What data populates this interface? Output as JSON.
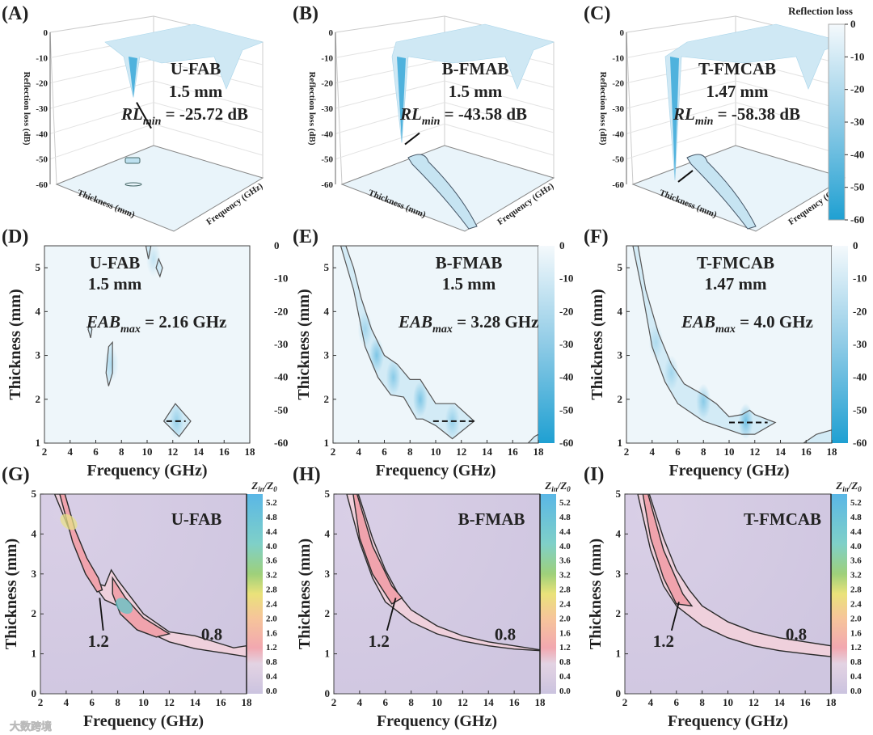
{
  "colorbar_title": "Reflection loss",
  "colorbar_ticks": [
    "0",
    "-10",
    "-20",
    "-30",
    "-40",
    "-50",
    "-60"
  ],
  "watermark": "大数跨境",
  "chart_data": [
    {
      "panel": "(A)",
      "type": "surface3d",
      "sample": "U-FAB",
      "thickness": "1.5 mm",
      "ann_main": "RL",
      "ann_sub": "min",
      "ann_value": " = -25.72 dB",
      "rl_min": -25.72,
      "zlabel": "Reflection loss (dB)",
      "xlabel": "Thickness (mm)",
      "ylabel": "Frequency (GHz)",
      "zticks": [
        "0",
        "-10",
        "-20",
        "-30",
        "-40",
        "-50",
        "-60"
      ],
      "zlim": [
        -60,
        0
      ]
    },
    {
      "panel": "(B)",
      "type": "surface3d",
      "sample": "B-FMAB",
      "thickness": "1.5 mm",
      "ann_main": "RL",
      "ann_sub": "min",
      "ann_value": " = -43.58 dB",
      "rl_min": -43.58,
      "zlabel": "Reflection loss (dB)",
      "xlabel": "Thickness (mm)",
      "ylabel": "Frequency (GHz)",
      "zticks": [
        "0",
        "-10",
        "-20",
        "-30",
        "-40",
        "-50",
        "-60"
      ],
      "zlim": [
        -60,
        0
      ]
    },
    {
      "panel": "(C)",
      "type": "surface3d",
      "sample": "T-FMCAB",
      "thickness": "1.47 mm",
      "ann_main": "RL",
      "ann_sub": "min",
      "ann_value": " = -58.38 dB",
      "rl_min": -58.38,
      "zlabel": "Reflection loss (dB)",
      "xlabel": "Thickness (mm)",
      "ylabel": "Frequency (GHz)",
      "zticks": [
        "0",
        "-10",
        "-20",
        "-30",
        "-40",
        "-50",
        "-60"
      ],
      "zlim": [
        -60,
        0
      ]
    },
    {
      "panel": "(D)",
      "type": "heatmap",
      "sample": "U-FAB",
      "thickness": "1.5 mm",
      "ann_main": "EAB",
      "ann_sub": "max",
      "ann_value": " = 2.16 GHz",
      "xlabel": "Frequency (GHz)",
      "ylabel": "Thickness (mm)",
      "xticks": [
        "2",
        "4",
        "6",
        "8",
        "10",
        "12",
        "14",
        "16",
        "18"
      ],
      "yticks": [
        "1",
        "2",
        "3",
        "4",
        "5"
      ],
      "xlim": [
        2,
        18
      ],
      "ylim": [
        1,
        5.5
      ],
      "colorbar_ticks": [
        "0",
        "-10",
        "-20",
        "-30",
        "-40",
        "-50",
        "-60"
      ],
      "show_colorbar": false,
      "contours": [
        [
          [
            9.9,
            5.5
          ],
          [
            10.1,
            5.2
          ],
          [
            10.3,
            5.5
          ]
        ],
        [
          [
            10.7,
            5.0
          ],
          [
            11.0,
            4.8
          ],
          [
            11.2,
            5.0
          ],
          [
            10.9,
            5.2
          ]
        ],
        [
          [
            5.4,
            3.6
          ],
          [
            5.6,
            3.4
          ],
          [
            5.7,
            3.6
          ],
          [
            5.5,
            3.7
          ]
        ],
        [
          [
            7.0,
            3.2
          ],
          [
            7.3,
            3.3
          ],
          [
            7.3,
            2.6
          ],
          [
            7.0,
            2.3
          ],
          [
            6.8,
            2.6
          ]
        ],
        [
          [
            11.3,
            1.5
          ],
          [
            12.2,
            1.9
          ],
          [
            13.4,
            1.5
          ],
          [
            12.5,
            1.15
          ]
        ]
      ],
      "hotspots": [
        [
          12.3,
          1.5,
          0.5
        ],
        [
          7.2,
          2.8,
          0.3
        ],
        [
          10.5,
          5.2,
          0.3
        ]
      ],
      "dash": [
        11.5,
        13.0,
        1.5
      ]
    },
    {
      "panel": "(E)",
      "type": "heatmap",
      "sample": "B-FMAB",
      "thickness": "1.5 mm",
      "ann_main": "EAB",
      "ann_sub": "max",
      "ann_value": " = 3.28 GHz",
      "xlabel": "Frequency (GHz)",
      "ylabel": "Thickness (mm)",
      "xticks": [
        "2",
        "4",
        "6",
        "8",
        "10",
        "12",
        "14",
        "16",
        "18"
      ],
      "yticks": [
        "1",
        "2",
        "3",
        "4",
        "5"
      ],
      "xlim": [
        2,
        18
      ],
      "ylim": [
        1,
        5.5
      ],
      "colorbar_ticks": [
        "0",
        "-10",
        "-20",
        "-30",
        "-40",
        "-50",
        "-60"
      ],
      "show_colorbar": true,
      "contours": [
        [
          [
            3.0,
            5.5
          ],
          [
            3.6,
            5.0
          ],
          [
            4.2,
            4.3
          ],
          [
            5.0,
            3.6
          ],
          [
            6.0,
            3.0
          ],
          [
            7.0,
            2.8
          ],
          [
            8.0,
            2.45
          ],
          [
            8.8,
            2.45
          ],
          [
            10.0,
            1.9
          ],
          [
            11.5,
            1.9
          ],
          [
            13.0,
            1.5
          ],
          [
            11.3,
            1.1
          ],
          [
            10.0,
            1.4
          ],
          [
            9.0,
            1.55
          ],
          [
            8.5,
            1.55
          ],
          [
            7.5,
            2.05
          ],
          [
            6.5,
            2.1
          ],
          [
            5.5,
            2.5
          ],
          [
            4.5,
            3.2
          ],
          [
            3.6,
            4.5
          ],
          [
            2.6,
            5.5
          ]
        ],
        [
          [
            17.2,
            1.0
          ],
          [
            17.7,
            1.15
          ],
          [
            18.0,
            1.2
          ],
          [
            18.0,
            1.0
          ]
        ]
      ],
      "hotspots": [
        [
          5.4,
          3.0,
          0.7
        ],
        [
          6.7,
          2.5,
          0.6
        ],
        [
          8.8,
          2.0,
          0.7
        ],
        [
          11.3,
          1.5,
          0.5
        ],
        [
          4.5,
          3.6,
          0.4
        ]
      ],
      "dash": [
        9.8,
        13.0,
        1.5
      ]
    },
    {
      "panel": "(F)",
      "type": "heatmap",
      "sample": "T-FMCAB",
      "thickness": "1.47 mm",
      "ann_main": "EAB",
      "ann_sub": "max",
      "ann_value": " = 4.0 GHz",
      "xlabel": "Frequency (GHz)",
      "ylabel": "Thickness (mm)",
      "xticks": [
        "2",
        "4",
        "6",
        "8",
        "10",
        "12",
        "14",
        "16",
        "18"
      ],
      "yticks": [
        "1",
        "2",
        "3",
        "4",
        "5"
      ],
      "xlim": [
        2,
        18
      ],
      "ylim": [
        1,
        5.5
      ],
      "colorbar_ticks": [
        "0",
        "-10",
        "-20",
        "-30",
        "-40",
        "-50",
        "-60"
      ],
      "show_colorbar": true,
      "contours": [
        [
          [
            2.9,
            5.5
          ],
          [
            3.5,
            4.5
          ],
          [
            4.5,
            3.5
          ],
          [
            5.5,
            2.8
          ],
          [
            6.5,
            2.35
          ],
          [
            8.0,
            2.1
          ],
          [
            9.0,
            1.9
          ],
          [
            10.0,
            1.6
          ],
          [
            11.0,
            1.65
          ],
          [
            11.6,
            1.75
          ],
          [
            12.0,
            1.65
          ],
          [
            13.6,
            1.47
          ],
          [
            12.0,
            1.2
          ],
          [
            11.0,
            1.2
          ],
          [
            10.0,
            1.3
          ],
          [
            8.0,
            1.5
          ],
          [
            6.0,
            1.9
          ],
          [
            5.0,
            2.4
          ],
          [
            4.0,
            3.2
          ],
          [
            3.2,
            4.5
          ],
          [
            2.5,
            5.5
          ]
        ],
        [
          [
            15.8,
            1.0
          ],
          [
            16.8,
            1.2
          ],
          [
            18.0,
            1.3
          ],
          [
            18.0,
            1.0
          ]
        ]
      ],
      "hotspots": [
        [
          8.0,
          1.95,
          0.6
        ],
        [
          11.3,
          1.5,
          0.8
        ],
        [
          5.5,
          2.6,
          0.4
        ],
        [
          4.3,
          3.3,
          0.3
        ]
      ],
      "dash": [
        10.0,
        13.0,
        1.47
      ]
    },
    {
      "panel": "(G)",
      "type": "contour",
      "sample": "U-FAB",
      "cb_main": "Z",
      "cb_sub": "in",
      "cb_sep": "/Z",
      "cb_sub2": "0",
      "xlabel": "Frequency (GHz)",
      "ylabel": "Thickness (mm)",
      "xticks": [
        "2",
        "4",
        "6",
        "8",
        "10",
        "12",
        "14",
        "16",
        "18"
      ],
      "yticks": [
        "0",
        "1",
        "2",
        "3",
        "4",
        "5"
      ],
      "xlim": [
        2,
        18
      ],
      "ylim": [
        0,
        5
      ],
      "colorbar_ticks": [
        "0.0",
        "0.4",
        "0.8",
        "1.2",
        "1.6",
        "2.0",
        "2.4",
        "2.8",
        "3.2",
        "3.6",
        "4.0",
        "4.4",
        "4.8",
        "5.2"
      ],
      "contour_labels": [
        "1.2",
        "0.8"
      ],
      "outer": [
        [
          3.1,
          5.0
        ],
        [
          3.7,
          5.0
        ],
        [
          4.5,
          4.0
        ],
        [
          5.5,
          3.3
        ],
        [
          6.5,
          2.75
        ],
        [
          7.0,
          2.7
        ],
        [
          7.5,
          3.1
        ],
        [
          8.0,
          2.85
        ],
        [
          10.0,
          2.0
        ],
        [
          12.0,
          1.55
        ],
        [
          14.0,
          1.45
        ],
        [
          16.0,
          1.25
        ],
        [
          17.0,
          1.15
        ],
        [
          18.0,
          1.2
        ],
        [
          18.0,
          0.93
        ],
        [
          16.0,
          1.03
        ],
        [
          14.0,
          1.13
        ],
        [
          12.0,
          1.3
        ],
        [
          10.0,
          1.6
        ],
        [
          8.0,
          2.2
        ],
        [
          7.0,
          2.35
        ],
        [
          6.0,
          2.8
        ],
        [
          5.0,
          3.5
        ],
        [
          4.0,
          4.3
        ]
      ],
      "inner": [
        [
          [
            3.5,
            5.0
          ],
          [
            3.9,
            5.0
          ],
          [
            4.7,
            4.1
          ],
          [
            5.6,
            3.4
          ],
          [
            6.5,
            2.9
          ],
          [
            6.8,
            2.6
          ],
          [
            6.4,
            2.55
          ],
          [
            5.5,
            3.0
          ],
          [
            4.5,
            3.8
          ]
        ],
        [
          [
            7.6,
            2.9
          ],
          [
            8.6,
            2.4
          ],
          [
            10.0,
            1.9
          ],
          [
            12.0,
            1.5
          ],
          [
            11.0,
            1.42
          ],
          [
            9.5,
            1.6
          ],
          [
            8.2,
            2.0
          ],
          [
            7.6,
            2.5
          ]
        ]
      ],
      "hotspots": [
        [
          8.5,
          2.2,
          "#5fc7c9"
        ],
        [
          4.2,
          4.3,
          "#e8e08a"
        ]
      ]
    },
    {
      "panel": "(H)",
      "type": "contour",
      "sample": "B-FMAB",
      "cb_main": "Z",
      "cb_sub": "in",
      "cb_sep": "/Z",
      "cb_sub2": "0",
      "xlabel": "Frequency (GHz)",
      "ylabel": "Thickness (mm)",
      "xticks": [
        "2",
        "4",
        "6",
        "8",
        "10",
        "12",
        "14",
        "16",
        "18"
      ],
      "yticks": [
        "0",
        "1",
        "2",
        "3",
        "4",
        "5"
      ],
      "xlim": [
        2,
        18
      ],
      "ylim": [
        0,
        5
      ],
      "colorbar_ticks": [
        "0.0",
        "0.4",
        "0.8",
        "1.2",
        "1.6",
        "2.0",
        "2.4",
        "2.8",
        "3.2",
        "3.6",
        "4.0",
        "4.4",
        "4.8",
        "5.2"
      ],
      "contour_labels": [
        "1.2",
        "0.8"
      ],
      "outer": [
        [
          3.0,
          5.0
        ],
        [
          3.9,
          5.0
        ],
        [
          5.0,
          3.9
        ],
        [
          6.0,
          3.1
        ],
        [
          7.0,
          2.5
        ],
        [
          8.0,
          2.1
        ],
        [
          10.0,
          1.7
        ],
        [
          12.0,
          1.45
        ],
        [
          14.0,
          1.3
        ],
        [
          16.0,
          1.2
        ],
        [
          18.0,
          1.1
        ],
        [
          18.0,
          1.08
        ],
        [
          16.0,
          1.12
        ],
        [
          14.0,
          1.2
        ],
        [
          12.0,
          1.32
        ],
        [
          10.0,
          1.5
        ],
        [
          8.0,
          1.8
        ],
        [
          6.0,
          2.3
        ],
        [
          5.0,
          2.9
        ],
        [
          4.0,
          3.8
        ]
      ],
      "inner": [
        [
          [
            3.5,
            5.0
          ],
          [
            3.8,
            5.0
          ],
          [
            5.0,
            3.7
          ],
          [
            6.5,
            2.7
          ],
          [
            7.3,
            2.4
          ],
          [
            6.5,
            2.25
          ],
          [
            5.0,
            3.0
          ],
          [
            4.0,
            3.9
          ]
        ]
      ],
      "hotspots": []
    },
    {
      "panel": "(I)",
      "type": "contour",
      "sample": "T-FMCAB",
      "cb_main": "Z",
      "cb_sub": "in",
      "cb_sep": "/Z",
      "cb_sub2": "0",
      "xlabel": "Frequency (GHz)",
      "ylabel": "Thickness (mm)",
      "xticks": [
        "2",
        "4",
        "6",
        "8",
        "10",
        "12",
        "14",
        "16",
        "18"
      ],
      "yticks": [
        "0",
        "1",
        "2",
        "3",
        "4",
        "5"
      ],
      "xlim": [
        2,
        18
      ],
      "ylim": [
        0,
        5
      ],
      "colorbar_ticks": [
        "0.0",
        "0.4",
        "0.8",
        "1.2",
        "1.6",
        "2.0",
        "2.4",
        "2.8",
        "3.2",
        "3.6",
        "4.0",
        "4.4",
        "4.8",
        "5.2"
      ],
      "contour_labels": [
        "1.2",
        "0.8"
      ],
      "outer": [
        [
          3.0,
          5.0
        ],
        [
          3.9,
          5.0
        ],
        [
          5.0,
          3.9
        ],
        [
          6.0,
          3.1
        ],
        [
          7.0,
          2.6
        ],
        [
          8.0,
          2.2
        ],
        [
          10.0,
          1.8
        ],
        [
          12.0,
          1.55
        ],
        [
          14.0,
          1.4
        ],
        [
          16.0,
          1.3
        ],
        [
          18.0,
          1.2
        ],
        [
          18.0,
          0.93
        ],
        [
          16.0,
          1.0
        ],
        [
          14.0,
          1.08
        ],
        [
          12.0,
          1.2
        ],
        [
          10.0,
          1.4
        ],
        [
          8.0,
          1.7
        ],
        [
          6.0,
          2.2
        ],
        [
          5.0,
          2.7
        ],
        [
          4.0,
          3.6
        ]
      ],
      "inner": [
        [
          [
            3.4,
            5.0
          ],
          [
            3.8,
            5.0
          ],
          [
            5.0,
            3.6
          ],
          [
            6.5,
            2.5
          ],
          [
            7.2,
            2.2
          ],
          [
            6.0,
            2.25
          ],
          [
            5.0,
            2.9
          ],
          [
            4.0,
            3.9
          ]
        ]
      ],
      "hotspots": []
    }
  ]
}
